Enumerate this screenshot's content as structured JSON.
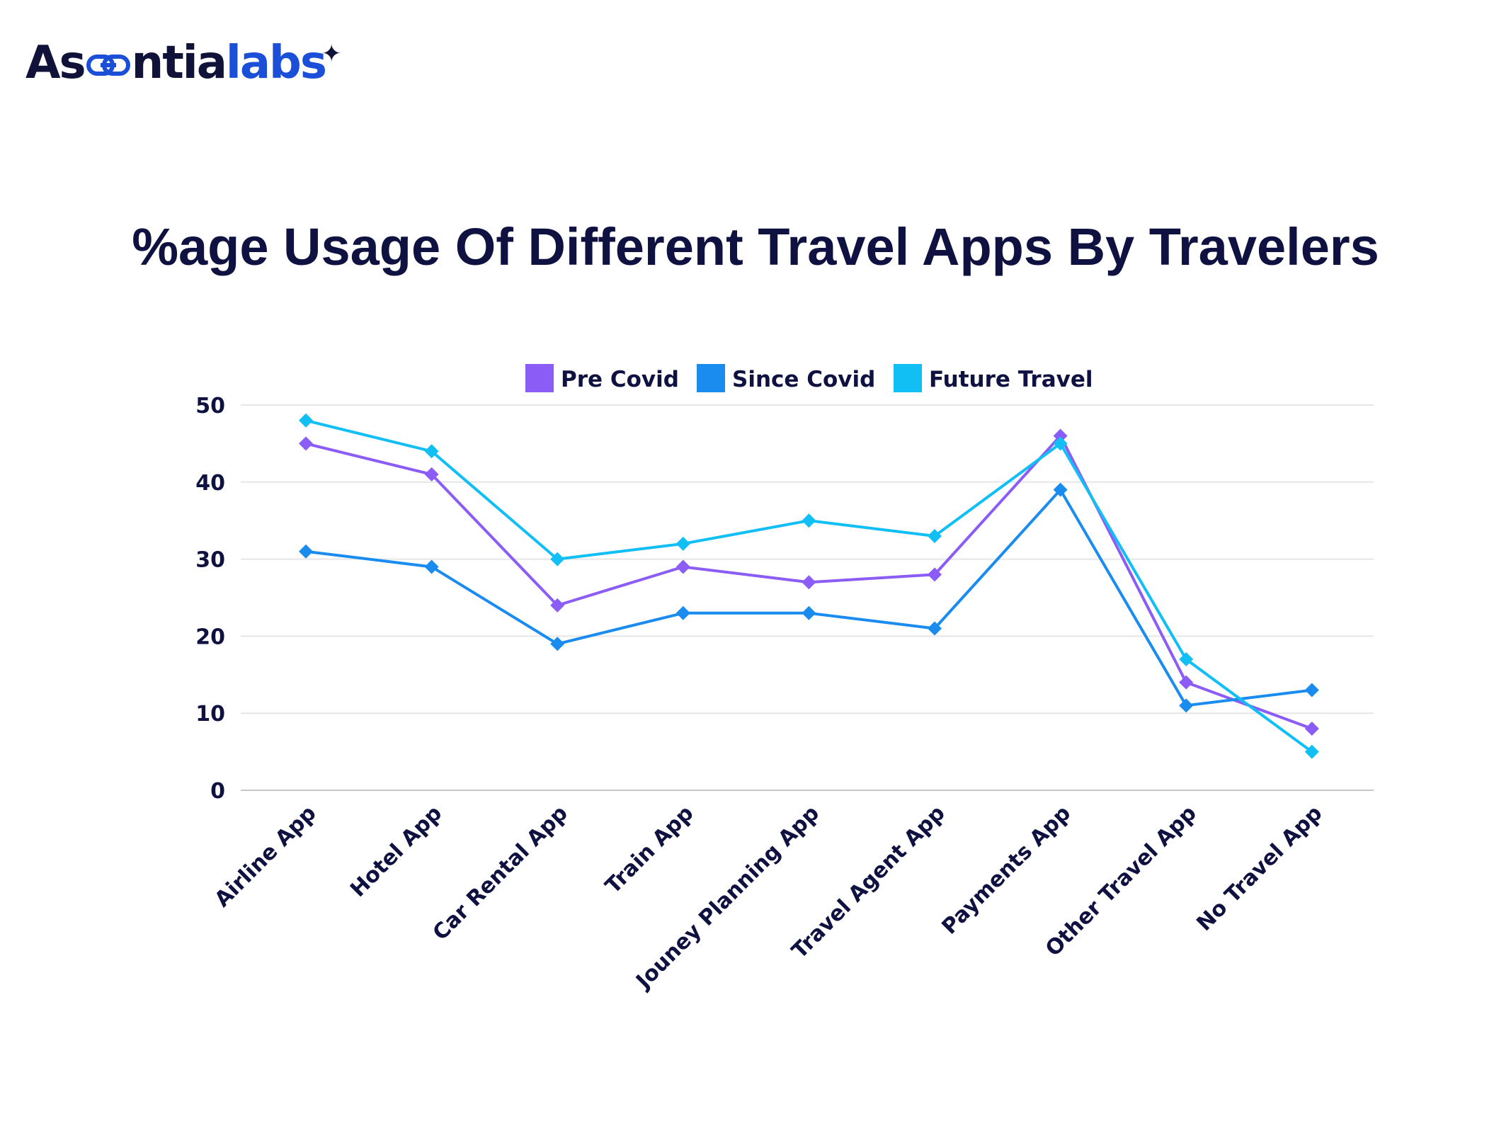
{
  "logo": {
    "part1": "As",
    "part2": "ntia",
    "part3": "labs"
  },
  "colors": {
    "pre": "#8b5cf6",
    "since": "#1a8cf0",
    "future": "#12bff5",
    "text": "#0f1140",
    "grid": "#e6e6e6"
  },
  "chart_data": {
    "type": "line",
    "title": "%age Usage Of Different Travel Apps By Travelers",
    "xlabel": "",
    "ylabel": "",
    "categories": [
      "Airline App",
      "Hotel App",
      "Car Rental App",
      "Train App",
      "Jouney Planning App",
      "Travel Agent App",
      "Payments App",
      "Other Travel App",
      "No Travel App"
    ],
    "series": [
      {
        "name": "Pre Covid",
        "color": "#8b5cf6",
        "values": [
          45,
          41,
          24,
          29,
          27,
          28,
          46,
          14,
          8
        ]
      },
      {
        "name": "Since Covid",
        "color": "#1a8cf0",
        "values": [
          31,
          29,
          19,
          23,
          23,
          21,
          39,
          11,
          13
        ]
      },
      {
        "name": "Future Travel",
        "color": "#12bff5",
        "values": [
          48,
          44,
          30,
          32,
          35,
          33,
          45,
          17,
          5
        ]
      }
    ],
    "ylim": [
      0,
      50
    ],
    "yticks": [
      0,
      10,
      20,
      30,
      40,
      50
    ],
    "grid": true,
    "legend_position": "top"
  }
}
